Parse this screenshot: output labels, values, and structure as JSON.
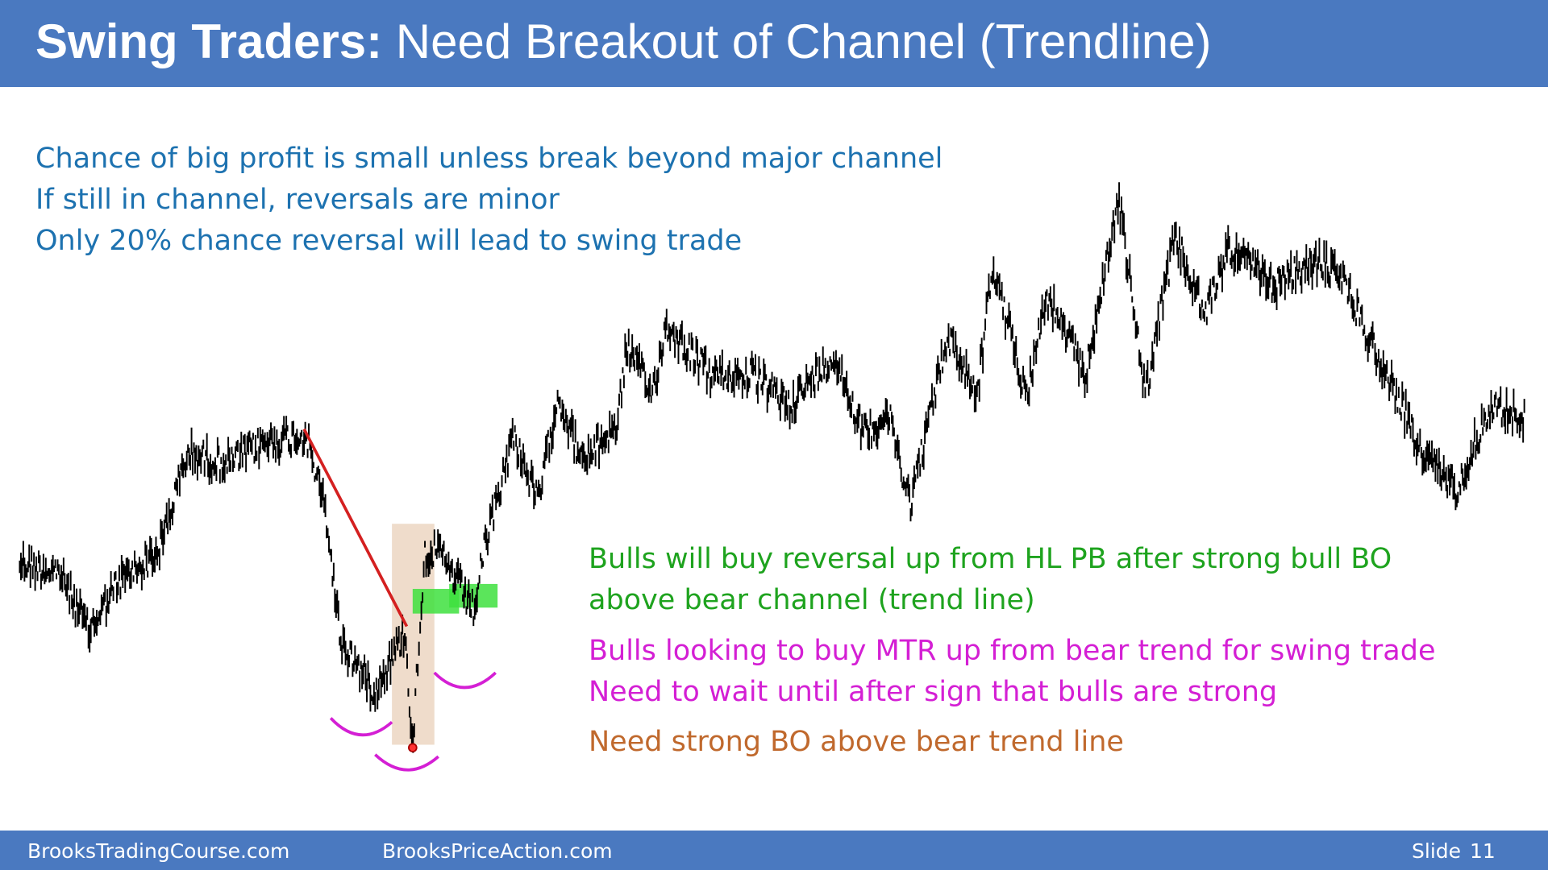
{
  "header": {
    "title_bold": "Swing Traders:",
    "title_rest": "Need Breakout of Channel (Trendline)"
  },
  "intro_lines": [
    "Chance of big profit is small unless break beyond major channel",
    "If still in channel, reversals are minor",
    "Only 20% chance reversal will lead to swing trade"
  ],
  "green_lines": [
    "Bulls will buy reversal up from HL PB after strong bull BO",
    "above bear channel (trend line)"
  ],
  "magenta_lines": [
    "Bulls looking to buy MTR up from bear trend for swing trade",
    "Need to wait until after sign that bulls are strong"
  ],
  "brown_lines": [
    "Need strong BO above bear trend line"
  ],
  "footer": {
    "left": "BrooksTradingCourse.com",
    "middle": "BrooksPriceAction.com",
    "slide_label": "Slide",
    "slide_number": "11"
  }
}
